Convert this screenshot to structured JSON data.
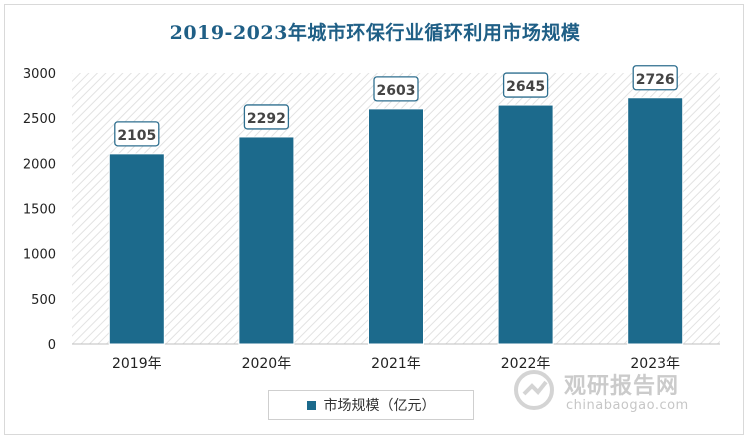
{
  "chart_data": {
    "type": "bar",
    "title": "2019-2023年城市环保行业循环利用市场规模",
    "categories": [
      "2019年",
      "2020年",
      "2021年",
      "2022年",
      "2023年"
    ],
    "series": [
      {
        "name": "市场规模（亿元）",
        "values": [
          2105,
          2292,
          2603,
          2645,
          2726
        ]
      }
    ],
    "ylim": [
      0,
      3000
    ],
    "yticks": [
      0,
      500,
      1000,
      1500,
      2000,
      2500,
      3000
    ],
    "data_labels": [
      "2105",
      "2292",
      "2603",
      "2645",
      "2726"
    ],
    "bar_color": "#1c6a8c",
    "plot_background": "hatched",
    "legend_position": "bottom"
  },
  "watermark": {
    "name": "观研报告网",
    "url": "chinabaogao.com"
  }
}
